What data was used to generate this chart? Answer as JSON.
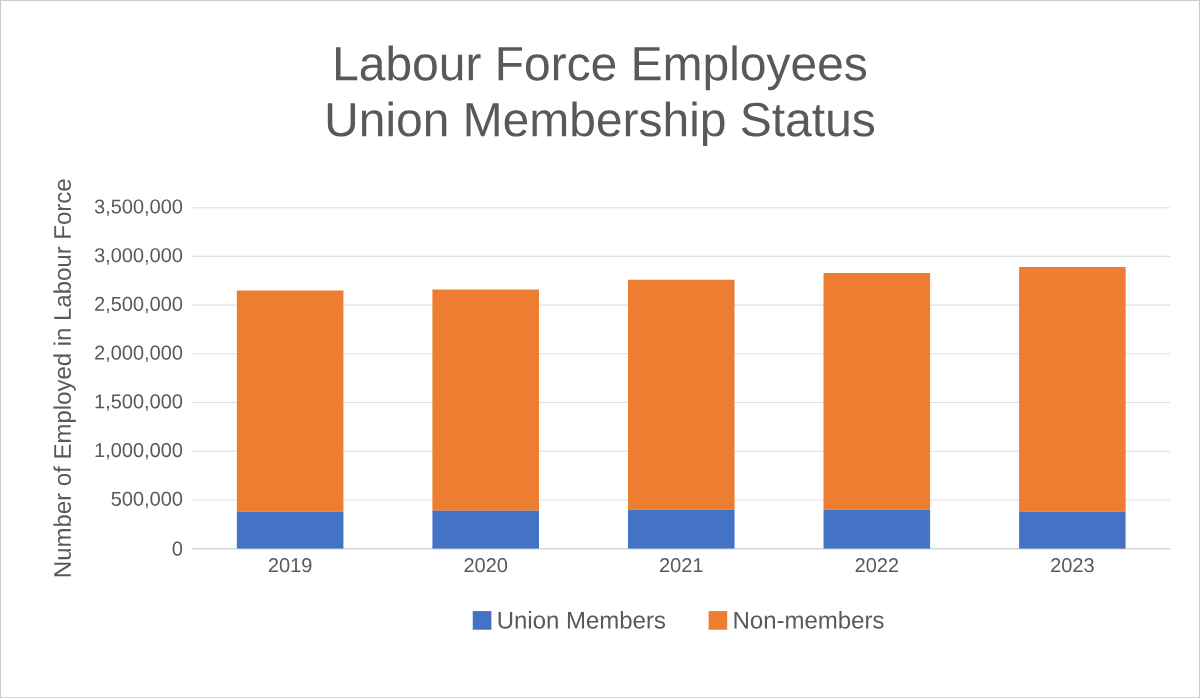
{
  "chart_data": {
    "type": "bar",
    "stacked": true,
    "title": "Labour Force Employees\nUnion Membership Status",
    "ylabel": "Number of Employed in Labour Force",
    "categories": [
      "2019",
      "2020",
      "2021",
      "2022",
      "2023"
    ],
    "series": [
      {
        "name": "Union Members",
        "color": "#4472c4",
        "values": [
          380000,
          390000,
          400000,
          400000,
          380000
        ]
      },
      {
        "name": "Non-members",
        "color": "#ed7d31",
        "values": [
          2270000,
          2270000,
          2360000,
          2430000,
          2510000
        ]
      }
    ],
    "ylim": [
      0,
      3500000
    ],
    "yticks": [
      {
        "value": 0,
        "label": "0"
      },
      {
        "value": 500000,
        "label": "500,000"
      },
      {
        "value": 1000000,
        "label": "1,000,000"
      },
      {
        "value": 1500000,
        "label": "1,500,000"
      },
      {
        "value": 2000000,
        "label": "2,000,000"
      },
      {
        "value": 2500000,
        "label": "2,500,000"
      },
      {
        "value": 3000000,
        "label": "3,000,000"
      },
      {
        "value": 3500000,
        "label": "3,500,000"
      }
    ],
    "grid": "y",
    "legend": "bottom"
  }
}
